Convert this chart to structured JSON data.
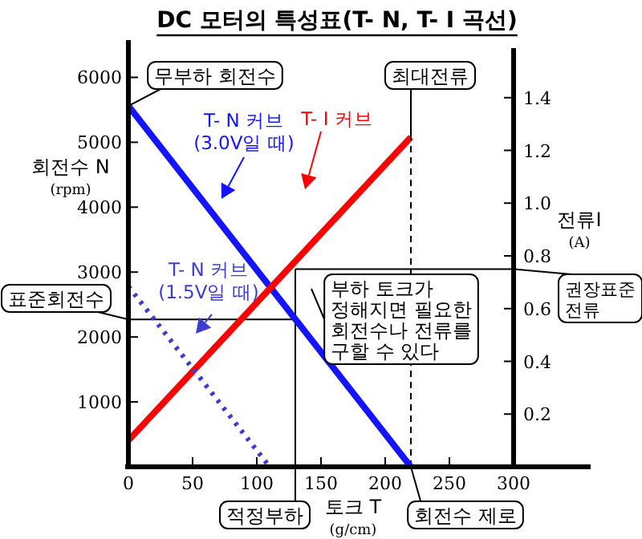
{
  "chart_data": {
    "type": "line",
    "title": "DC 모터의 특성표(T- N, T- I 곡선)",
    "xlabel": "토크 T (g/cm)",
    "ylabel": "회전수 N (rpm)",
    "y2label": "전류I (A)",
    "xlim": [
      0,
      360
    ],
    "xticks": [
      0,
      50,
      100,
      150,
      200,
      250,
      300
    ],
    "ylim": [
      0,
      6500
    ],
    "yticks": [
      1000,
      2000,
      3000,
      4000,
      5000,
      6000
    ],
    "y2lim": [
      0,
      1.6
    ],
    "y2ticks": [
      0.2,
      0.4,
      0.6,
      0.8,
      {
        "value": 1.0,
        "label": "1.0"
      },
      1.2,
      1.4
    ],
    "marker": "none",
    "series": [
      {
        "name": "T- N 커브 (3.0V일 때)",
        "color": "#1414ff",
        "x": [
          0,
          220
        ],
        "values": [
          5560,
          0
        ],
        "line_style": "solid"
      },
      {
        "name": "T- I 커브",
        "color": "#ff0000",
        "x": [
          0,
          220
        ],
        "values": [
          0.1,
          1.25
        ],
        "axis": "y2",
        "line_style": "solid"
      },
      {
        "name": "T- N 커브 (1.5V일 때)",
        "color": "#3c3cd2",
        "x": [
          0,
          110
        ],
        "values": [
          2780,
          0
        ],
        "line_style": "dotted"
      }
    ],
    "ref_lines": [
      {
        "axis": "x",
        "value": 220,
        "label": "최대전류",
        "line_style": "dashed",
        "color": "#000000"
      },
      {
        "axis": "x",
        "value": 130,
        "label": "적정부하",
        "color": "#000000"
      },
      {
        "axis": "y",
        "value": 2270,
        "label": "표준회전수",
        "color": "#000000"
      },
      {
        "axis": "y2",
        "value": 0.75,
        "label": "권장표준 전류",
        "color": "#000000"
      }
    ],
    "annotations": [
      {
        "text": "무부하 회전수",
        "x": 0,
        "y": 5560
      },
      {
        "text": "회전수 제로",
        "x": 220,
        "y": 0
      },
      "부하 토크가 정해지면 필요한 회전수나 전류를 구할 수 있다"
    ]
  }
}
